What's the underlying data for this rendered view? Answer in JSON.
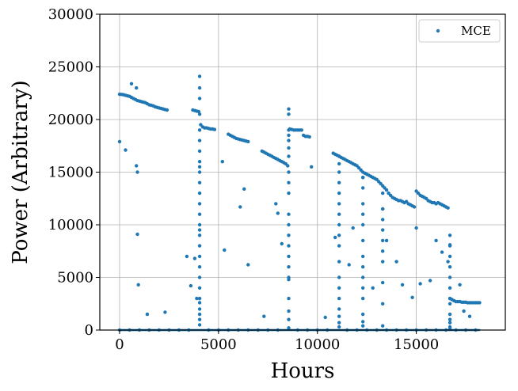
{
  "chart_data": {
    "type": "scatter",
    "title": "",
    "xlabel": "Hours",
    "ylabel": "Power (Arbitrary)",
    "xlim": [
      -1000,
      19500
    ],
    "ylim": [
      0,
      30000
    ],
    "xticks": [
      0,
      5000,
      10000,
      15000
    ],
    "yticks": [
      0,
      5000,
      10000,
      15000,
      20000,
      25000,
      30000
    ],
    "grid": true,
    "legend_position": "top-right",
    "series": [
      {
        "name": "MCE",
        "color": "#1f77b4",
        "x": [
          0,
          100,
          200,
          300,
          400,
          500,
          600,
          700,
          800,
          900,
          1000,
          1100,
          1200,
          1300,
          1400,
          1500,
          1600,
          1700,
          1800,
          1900,
          2000,
          2100,
          2200,
          2300,
          2400,
          3700,
          3800,
          3900,
          4000,
          4100,
          4200,
          4300,
          4400,
          4500,
          4600,
          4700,
          4800,
          5500,
          5600,
          5700,
          5800,
          5900,
          6000,
          6100,
          6200,
          6300,
          6400,
          6500,
          7200,
          7300,
          7400,
          7500,
          7600,
          7700,
          7800,
          7900,
          8000,
          8100,
          8200,
          8300,
          8400,
          8500,
          8600,
          8700,
          8800,
          8900,
          9000,
          9100,
          9200,
          9300,
          9400,
          9500,
          9600,
          10800,
          10900,
          11000,
          11100,
          11200,
          11300,
          11400,
          11500,
          11600,
          11700,
          11800,
          11900,
          12000,
          12100,
          12200,
          12300,
          12400,
          12500,
          12600,
          12700,
          12800,
          12900,
          13000,
          13100,
          13200,
          13300,
          13400,
          13500,
          13600,
          13700,
          13800,
          13900,
          14000,
          14100,
          14200,
          14300,
          14400,
          14500,
          14600,
          14700,
          14800,
          14900,
          15000,
          15100,
          15200,
          15300,
          15400,
          15500,
          15600,
          15700,
          15800,
          15900,
          16000,
          16100,
          16200,
          16300,
          16400,
          16500,
          16600,
          16700,
          16800,
          16900,
          17000,
          17100,
          17200,
          17300,
          17400,
          17500,
          17600,
          17700,
          17800,
          17900,
          18000,
          18100,
          18200,
          4050,
          4050,
          4050,
          4050,
          4050,
          4050,
          4050,
          4050,
          4050,
          4050,
          4050,
          4050,
          4050,
          4050,
          4050,
          4050,
          4050,
          4050,
          4050,
          4050,
          4050,
          4050,
          4050,
          4050,
          4050,
          4050,
          4050,
          4050,
          8550,
          8550,
          8550,
          8550,
          8550,
          8550,
          8550,
          8550,
          8550,
          8550,
          8550,
          8550,
          8550,
          8550,
          8550,
          8550,
          8550,
          8550,
          8550,
          8550,
          8550,
          8550,
          11100,
          11100,
          11100,
          11100,
          11100,
          11100,
          11100,
          11100,
          11100,
          11100,
          11100,
          11100,
          11100,
          11100,
          11100,
          11100,
          11100,
          11100,
          12300,
          12300,
          12300,
          12300,
          12300,
          12300,
          12300,
          12300,
          12300,
          12300,
          12300,
          12300,
          12300,
          12300,
          12300,
          13300,
          13300,
          13300,
          13300,
          13300,
          13300,
          13300,
          13300,
          13300,
          13300,
          13300,
          16700,
          16700,
          16700,
          16700,
          16700,
          16700,
          16700,
          16700,
          16700,
          16700,
          16700,
          16700,
          16700,
          16700,
          0,
          300,
          600,
          850,
          850,
          900,
          900,
          950,
          1400,
          2300,
          3400,
          3600,
          3800,
          3900,
          5200,
          5300,
          6100,
          6300,
          6500,
          7300,
          7900,
          8000,
          8200,
          9700,
          10400,
          10900,
          11600,
          11800,
          12800,
          13500,
          14000,
          14300,
          14800,
          15000,
          15200,
          15700,
          16000,
          16300,
          16600,
          17200,
          17400,
          17700,
          0,
          500,
          1000,
          1500,
          2000,
          2500,
          3000,
          3500,
          4500,
          5000,
          5500,
          6000,
          6500,
          7000,
          7500,
          8000,
          9000,
          9500,
          10000,
          10500,
          11500,
          12000,
          12500,
          13000,
          13500,
          14000,
          14500,
          15000,
          15500,
          16000,
          16500,
          17000,
          17500,
          18000
        ],
        "y": [
          22400,
          22380,
          22350,
          22300,
          22250,
          22200,
          22100,
          22000,
          21900,
          21800,
          21750,
          21700,
          21650,
          21600,
          21500,
          21400,
          21350,
          21300,
          21200,
          21150,
          21100,
          21050,
          21000,
          20950,
          20900,
          20900,
          20850,
          20800,
          20750,
          19500,
          19300,
          19200,
          19200,
          19150,
          19100,
          19100,
          19050,
          18600,
          18500,
          18400,
          18300,
          18200,
          18150,
          18100,
          18050,
          18000,
          17950,
          17900,
          17000,
          16900,
          16800,
          16700,
          16600,
          16500,
          16400,
          16300,
          16200,
          16100,
          16000,
          15900,
          15800,
          15600,
          19100,
          19050,
          19000,
          19000,
          19000,
          19000,
          19000,
          18500,
          18400,
          18400,
          18350,
          16800,
          16700,
          16600,
          16500,
          16400,
          16300,
          16200,
          16100,
          16000,
          15900,
          15800,
          15700,
          15600,
          15400,
          15200,
          15000,
          14900,
          14800,
          14700,
          14600,
          14500,
          14400,
          14300,
          14100,
          13900,
          13700,
          13500,
          13300,
          13000,
          12800,
          12600,
          12500,
          12400,
          12300,
          12300,
          12200,
          12100,
          12200,
          12000,
          11900,
          11800,
          11700,
          13200,
          13000,
          12800,
          12700,
          12600,
          12500,
          12300,
          12200,
          12100,
          12100,
          12000,
          12100,
          12000,
          11900,
          11800,
          11700,
          11600,
          3000,
          2900,
          2800,
          2700,
          2700,
          2700,
          2650,
          2650,
          2650,
          2600,
          2600,
          2600,
          2600,
          2600,
          2600,
          2600,
          2600,
          24100,
          23000,
          22000,
          20500,
          19000,
          18000,
          17000,
          16000,
          15500,
          15000,
          14000,
          13000,
          12000,
          11000,
          10000,
          9500,
          9000,
          8000,
          7000,
          6000,
          5000,
          4000,
          3000,
          2000,
          1500,
          1000,
          500,
          200,
          21000,
          20500,
          19000,
          18500,
          18000,
          16500,
          15000,
          14000,
          13000,
          11000,
          10000,
          9000,
          8000,
          7000,
          6000,
          5000,
          4800,
          3000,
          1800,
          1000,
          17300,
          16500,
          15000,
          14000,
          13000,
          12000,
          11000,
          10000,
          9000,
          8000,
          6500,
          5000,
          4000,
          3000,
          2000,
          1300,
          700,
          300,
          15800,
          14500,
          13500,
          12000,
          11000,
          10000,
          8500,
          7000,
          6000,
          5000,
          4000,
          3000,
          1500,
          800,
          400,
          14500,
          13000,
          11500,
          10500,
          9500,
          8500,
          7500,
          6500,
          4500,
          2500,
          400,
          11500,
          9000,
          8000,
          7000,
          6000,
          5000,
          4000,
          3000,
          2500,
          1500,
          1000,
          700,
          300,
          100,
          8100,
          17900,
          17100,
          23400,
          23000,
          15600,
          15000,
          9100,
          4300,
          1500,
          1700,
          7000,
          4200,
          6800,
          3000,
          16000,
          7600,
          11700,
          13400,
          6200,
          1300,
          12000,
          11100,
          8200,
          15500,
          1200,
          8800,
          6200,
          9700,
          4000,
          8500,
          6500,
          4300,
          3100,
          9700,
          4400,
          4700,
          8500,
          7400,
          6500,
          4300,
          1800,
          1300,
          0,
          0,
          0,
          0,
          0,
          0,
          0,
          0,
          0,
          0,
          0,
          0,
          0,
          0,
          0,
          0,
          0,
          0,
          0,
          0,
          0,
          0,
          0,
          0,
          0,
          0,
          0,
          0,
          0,
          0,
          0,
          0,
          0,
          0
        ]
      }
    ]
  }
}
